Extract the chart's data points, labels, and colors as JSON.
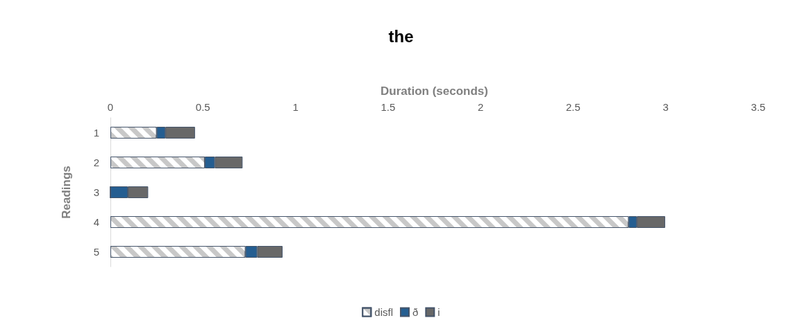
{
  "chart_data": {
    "type": "bar",
    "orientation": "horizontal",
    "stacked": true,
    "title": "the",
    "xlabel": "Duration (seconds)",
    "ylabel": "Readings",
    "categories": [
      "1",
      "2",
      "3",
      "4",
      "5"
    ],
    "series": [
      {
        "name": "disfl",
        "color": "#c8c8c8",
        "values": [
          0.25,
          0.51,
          0,
          2.8,
          0.73
        ]
      },
      {
        "name": "ð",
        "color": "#255e91",
        "values": [
          0.047,
          0.054,
          0.094,
          0.044,
          0.063
        ]
      },
      {
        "name": "i",
        "color": "#686868",
        "values": [
          0.16,
          0.15,
          0.11,
          0.153,
          0.137
        ]
      }
    ],
    "xlim": [
      0,
      3.5
    ],
    "xticks": [
      0,
      0.5,
      1,
      1.5,
      2,
      2.5,
      3,
      3.5
    ],
    "grid": false,
    "legend": "bottom"
  }
}
